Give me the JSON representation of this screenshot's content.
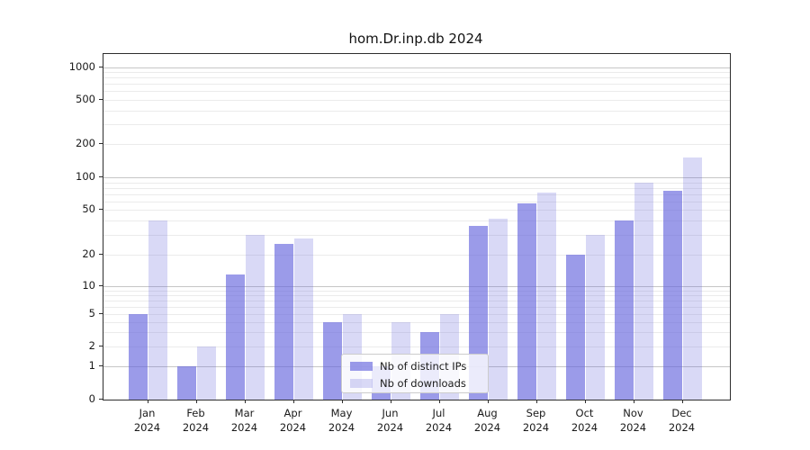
{
  "title": "hom.Dr.inp.db 2024",
  "legend": {
    "items": [
      {
        "label": "Nb of distinct IPs",
        "color": "#9b9be9"
      },
      {
        "label": "Nb of downloads",
        "color": "#d9d9f6"
      }
    ]
  },
  "axes": {
    "x_year_line": "2024",
    "y_tick_labels": [
      "1000",
      "500",
      "200",
      "100",
      "50",
      "20",
      "10",
      "5",
      "2",
      "1",
      "0"
    ]
  },
  "chart_data": {
    "type": "bar",
    "title": "hom.Dr.inp.db 2024",
    "categories": [
      "Jan",
      "Feb",
      "Mar",
      "Apr",
      "May",
      "Jun",
      "Jul",
      "Aug",
      "Sep",
      "Oct",
      "Nov",
      "Dec"
    ],
    "x_second_line": "2024",
    "series": [
      {
        "name": "Nb of distinct IPs",
        "color": "#9b9be9",
        "values": [
          5,
          1,
          13,
          25,
          4,
          1,
          3,
          36,
          57,
          20,
          40,
          75
        ]
      },
      {
        "name": "Nb of downloads",
        "color": "#d9d9f6",
        "values": [
          40,
          2,
          30,
          28,
          5,
          4,
          5,
          42,
          72,
          30,
          90,
          150
        ]
      }
    ],
    "yscale": "symlog",
    "yticks": [
      0,
      1,
      2,
      5,
      10,
      20,
      50,
      100,
      200,
      500,
      1000
    ],
    "ylim": [
      0,
      1000
    ],
    "grid": true,
    "legend_position": "lower center"
  }
}
